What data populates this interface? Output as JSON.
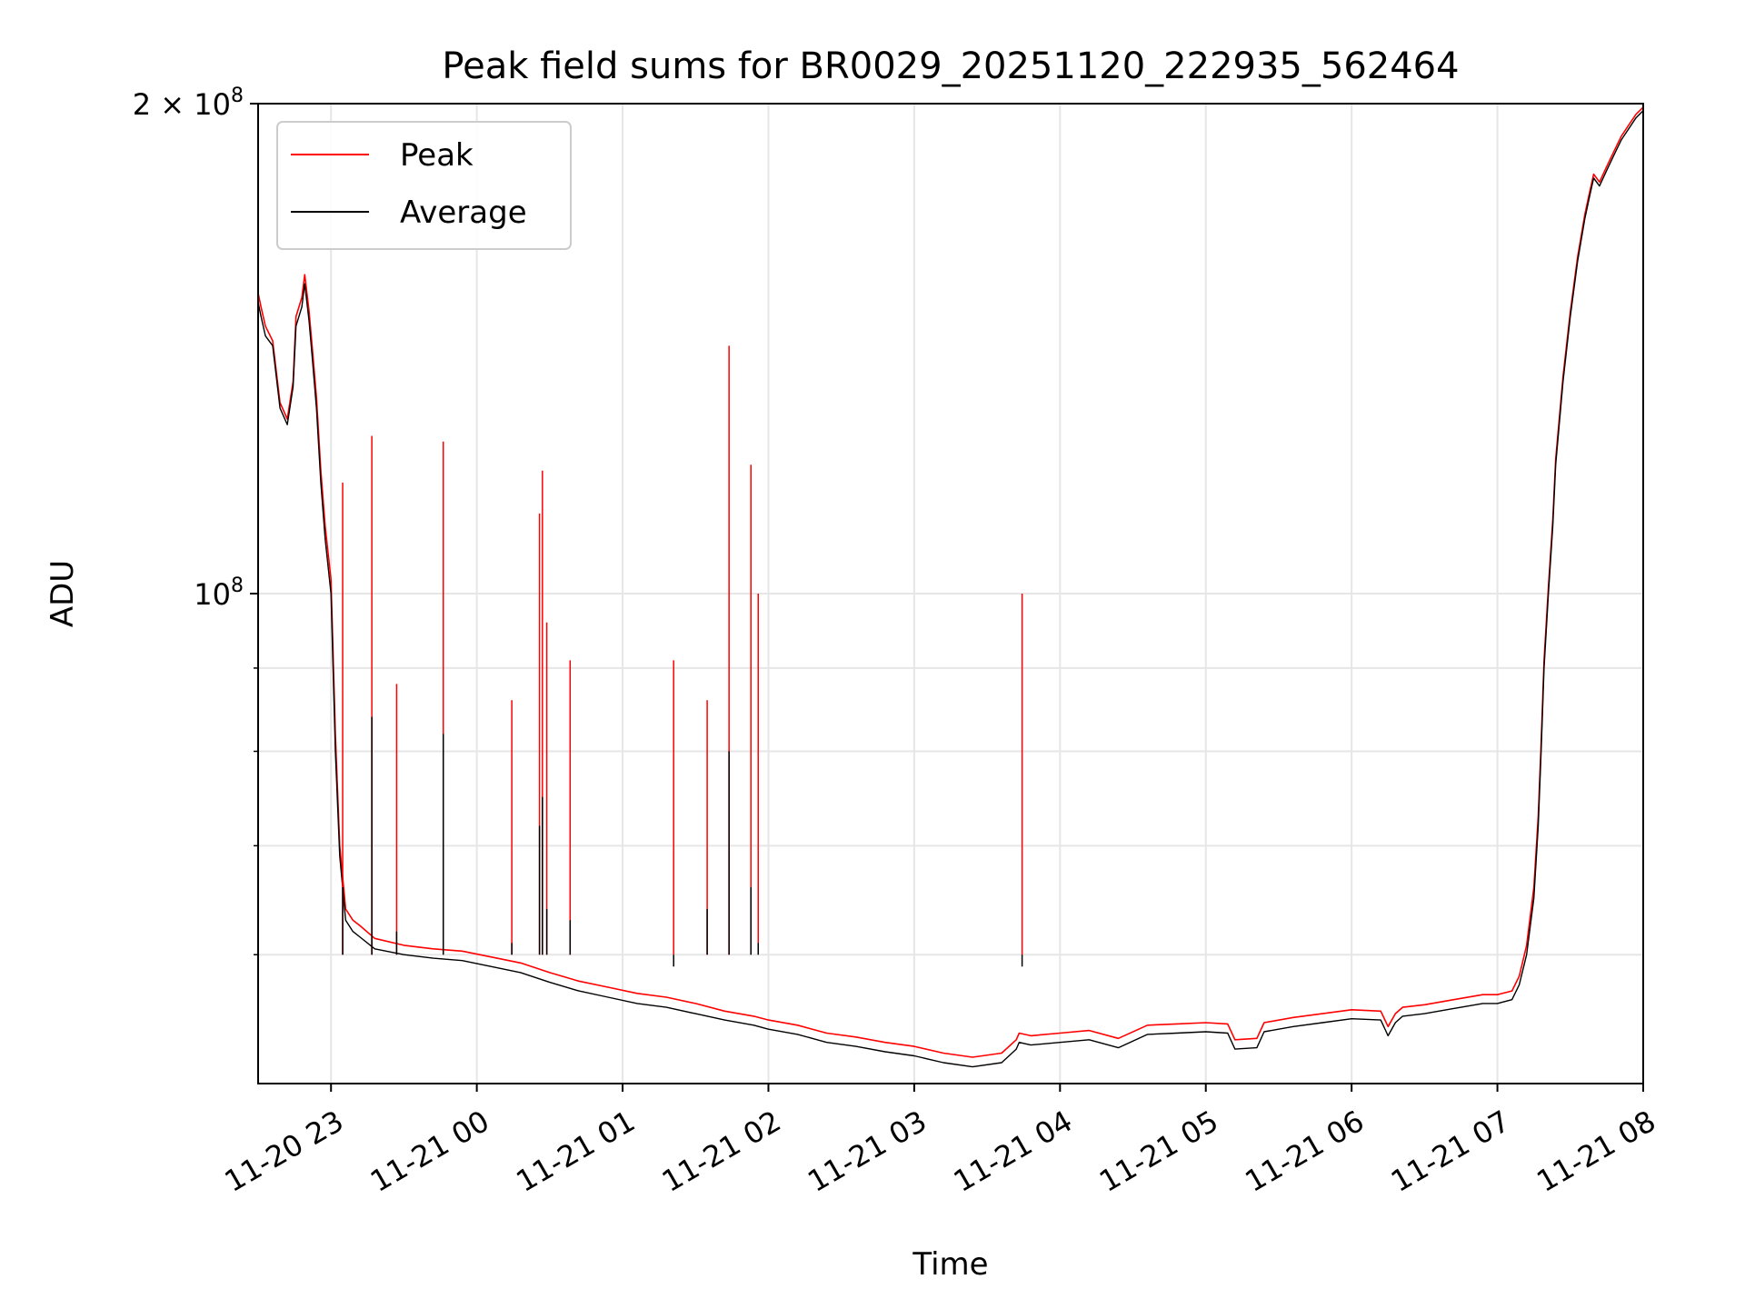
{
  "chart_data": {
    "type": "line",
    "title": "Peak field sums for BR0029_20251120_222935_562464",
    "xlabel": "Time",
    "ylabel": "ADU",
    "yscale": "log",
    "ylim": [
      50000000,
      200000000
    ],
    "xlim_hours": [
      22.5,
      32.0
    ],
    "grid": true,
    "legend_position": "top-left",
    "x_ticks": [
      {
        "label": "11-20 23",
        "value": 23
      },
      {
        "label": "11-21 00",
        "value": 24
      },
      {
        "label": "11-21 01",
        "value": 25
      },
      {
        "label": "11-21 02",
        "value": 26
      },
      {
        "label": "11-21 03",
        "value": 27
      },
      {
        "label": "11-21 04",
        "value": 28
      },
      {
        "label": "11-21 05",
        "value": 29
      },
      {
        "label": "11-21 06",
        "value": 30
      },
      {
        "label": "11-21 07",
        "value": 31
      },
      {
        "label": "11-21 08",
        "value": 32
      }
    ],
    "y_ticks_major": [
      {
        "base": "10",
        "exp": "8",
        "value": 100000000
      },
      {
        "prefix": "2 × ",
        "base": "10",
        "exp": "8",
        "value": 200000000
      }
    ],
    "y_ticks_minor": [
      60000000,
      70000000,
      80000000,
      90000000
    ],
    "series": [
      {
        "name": "Average",
        "color": "#000000",
        "x": [
          22.5,
          22.52,
          22.55,
          22.6,
          22.65,
          22.7,
          22.74,
          22.76,
          22.8,
          22.82,
          22.85,
          22.87,
          22.9,
          22.93,
          22.96,
          23.0,
          23.03,
          23.06,
          23.08,
          23.1,
          23.15,
          23.2,
          23.3,
          23.5,
          23.7,
          23.9,
          24.1,
          24.3,
          24.5,
          24.7,
          24.9,
          25.1,
          25.3,
          25.5,
          25.7,
          25.9,
          26.0,
          26.2,
          26.4,
          26.6,
          26.8,
          27.0,
          27.2,
          27.4,
          27.6,
          27.7,
          27.72,
          27.8,
          28.0,
          28.2,
          28.4,
          28.6,
          28.8,
          29.0,
          29.15,
          29.2,
          29.35,
          29.4,
          29.6,
          29.8,
          30.0,
          30.2,
          30.25,
          30.3,
          30.35,
          30.5,
          30.7,
          30.9,
          31.0,
          31.1,
          31.15,
          31.2,
          31.25,
          31.28,
          31.3,
          31.32,
          31.35,
          31.38,
          31.4,
          31.45,
          31.5,
          31.55,
          31.6,
          31.63,
          31.66,
          31.7,
          31.75,
          31.8,
          31.85,
          31.9,
          31.95,
          32.0
        ],
        "values": [
          151000000,
          148000000,
          144000000,
          142000000,
          130000000,
          127000000,
          134000000,
          146000000,
          150000000,
          155000000,
          147000000,
          140000000,
          130000000,
          117000000,
          108000000,
          100000000,
          80000000,
          69000000,
          66000000,
          63000000,
          62000000,
          61500000,
          60500000,
          60000000,
          59700000,
          59500000,
          59000000,
          58500000,
          57700000,
          57000000,
          56500000,
          56000000,
          55700000,
          55200000,
          54700000,
          54300000,
          54000000,
          53600000,
          53000000,
          52700000,
          52300000,
          52000000,
          51500000,
          51200000,
          51500000,
          52500000,
          53000000,
          52800000,
          53000000,
          53200000,
          52600000,
          53600000,
          53700000,
          53800000,
          53700000,
          52500000,
          52600000,
          53800000,
          54200000,
          54500000,
          54800000,
          54700000,
          53500000,
          54500000,
          55000000,
          55200000,
          55600000,
          56000000,
          56000000,
          56300000,
          57500000,
          60000000,
          65000000,
          72000000,
          80000000,
          90000000,
          100000000,
          110000000,
          120000000,
          135000000,
          148000000,
          160000000,
          170000000,
          175000000,
          180000000,
          178000000,
          182000000,
          186000000,
          190000000,
          193000000,
          196000000,
          198000000
        ]
      },
      {
        "name": "Peak",
        "color": "#ff0000",
        "x": [
          22.5,
          22.52,
          22.55,
          22.6,
          22.65,
          22.7,
          22.74,
          22.76,
          22.8,
          22.82,
          22.85,
          22.87,
          22.9,
          22.93,
          22.96,
          23.0,
          23.03,
          23.06,
          23.08,
          23.1,
          23.15,
          23.2,
          23.3,
          23.5,
          23.7,
          23.9,
          24.1,
          24.3,
          24.5,
          24.7,
          24.9,
          25.1,
          25.3,
          25.5,
          25.7,
          25.9,
          26.0,
          26.2,
          26.4,
          26.6,
          26.8,
          27.0,
          27.2,
          27.4,
          27.6,
          27.7,
          27.72,
          27.8,
          28.0,
          28.2,
          28.4,
          28.6,
          28.8,
          29.0,
          29.15,
          29.2,
          29.35,
          29.4,
          29.6,
          29.8,
          30.0,
          30.2,
          30.25,
          30.3,
          30.35,
          30.5,
          30.7,
          30.9,
          31.0,
          31.1,
          31.15,
          31.2,
          31.25,
          31.28,
          31.3,
          31.32,
          31.35,
          31.38,
          31.4,
          31.45,
          31.5,
          31.55,
          31.6,
          31.63,
          31.66,
          31.7,
          31.75,
          31.8,
          31.85,
          31.9,
          31.95,
          32.0
        ],
        "values": [
          153000000,
          150000000,
          146000000,
          143000000,
          131000000,
          128000000,
          135000000,
          148000000,
          152000000,
          157000000,
          149000000,
          142000000,
          132000000,
          119000000,
          110000000,
          102000000,
          82000000,
          70000000,
          67000000,
          64000000,
          63000000,
          62500000,
          61400000,
          60800000,
          60500000,
          60300000,
          59800000,
          59300000,
          58500000,
          57800000,
          57300000,
          56800000,
          56500000,
          56000000,
          55400000,
          55000000,
          54700000,
          54300000,
          53700000,
          53400000,
          53000000,
          52700000,
          52200000,
          51900000,
          52200000,
          53200000,
          53700000,
          53500000,
          53700000,
          53900000,
          53300000,
          54300000,
          54400000,
          54500000,
          54400000,
          53200000,
          53300000,
          54500000,
          54900000,
          55200000,
          55500000,
          55400000,
          54200000,
          55200000,
          55700000,
          55900000,
          56300000,
          56700000,
          56700000,
          57000000,
          58200000,
          60800000,
          66000000,
          73000000,
          81000000,
          91000000,
          101000000,
          111000000,
          121000000,
          136000000,
          149000000,
          161000000,
          171000000,
          176000000,
          181000000,
          179000000,
          183000000,
          187000000,
          191000000,
          194000000,
          197000000,
          199000000
        ]
      }
    ],
    "spikes": [
      {
        "x": 23.08,
        "peak": 117000000,
        "average": 66000000
      },
      {
        "x": 23.28,
        "peak": 125000000,
        "average": 84000000
      },
      {
        "x": 23.45,
        "peak": 88000000,
        "average": 62000000
      },
      {
        "x": 23.77,
        "peak": 124000000,
        "average": 82000000
      },
      {
        "x": 24.24,
        "peak": 86000000,
        "average": 61000000
      },
      {
        "x": 24.43,
        "peak": 112000000,
        "average": 72000000
      },
      {
        "x": 24.45,
        "peak": 119000000,
        "average": 75000000
      },
      {
        "x": 24.48,
        "peak": 96000000,
        "average": 64000000
      },
      {
        "x": 24.64,
        "peak": 91000000,
        "average": 63000000
      },
      {
        "x": 25.35,
        "peak": 91000000,
        "average": 59000000
      },
      {
        "x": 25.58,
        "peak": 86000000,
        "average": 64000000
      },
      {
        "x": 25.73,
        "peak": 142000000,
        "average": 80000000
      },
      {
        "x": 25.88,
        "peak": 120000000,
        "average": 66000000
      },
      {
        "x": 25.93,
        "peak": 100000000,
        "average": 61000000
      },
      {
        "x": 27.74,
        "peak": 100000000,
        "average": 59000000
      }
    ]
  },
  "legend": {
    "peak_label": "Peak",
    "average_label": "Average"
  }
}
